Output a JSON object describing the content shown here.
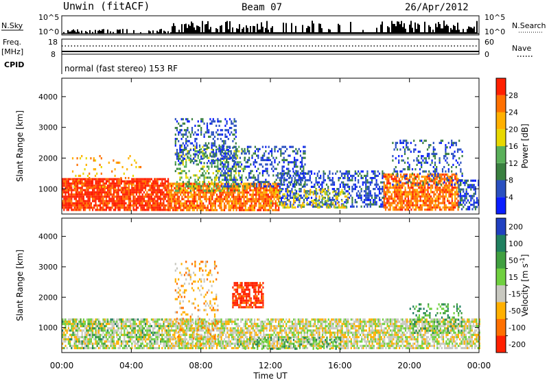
{
  "header": {
    "title": "Unwin (fitACF)",
    "beam": "Beam 07",
    "date": "26/Apr/2012"
  },
  "status_panels": {
    "nsky": {
      "label": "N.Sky",
      "ticks": [
        "10^5",
        "10^0"
      ]
    },
    "nsearch": {
      "label": "N.Search",
      "ticks": [
        "10^5",
        "10^0"
      ]
    },
    "freq": {
      "label_top": "Freq.",
      "label_unit": "[MHz]",
      "ticks": [
        "18",
        "8"
      ]
    },
    "nave": {
      "label": "Nave",
      "ticks": [
        "60",
        "0"
      ]
    },
    "cpid": {
      "label": "CPID",
      "value": "normal (fast stereo) 153 RF"
    }
  },
  "chart_data": [
    {
      "type": "heatmap",
      "title": "",
      "xlabel": "Time UT",
      "ylabel": "Slant Range [km]",
      "xlim": [
        0,
        24
      ],
      "ylim": [
        180,
        4600
      ],
      "x_ticks": [
        "00:00",
        "04:00",
        "08:00",
        "12:00",
        "16:00",
        "20:00",
        "00:00"
      ],
      "x_tick_values": [
        0,
        4,
        8,
        12,
        16,
        20,
        24
      ],
      "y_ticks": [
        "1000",
        "2000",
        "3000",
        "4000"
      ],
      "y_tick_values": [
        1000,
        2000,
        3000,
        4000
      ],
      "colorbar": {
        "label": "Power [dB]",
        "ticks": [
          "4",
          "8",
          "12",
          "16",
          "20",
          "24",
          "28"
        ],
        "tick_values": [
          4,
          8,
          12,
          16,
          20,
          24,
          28
        ],
        "range": [
          0,
          32
        ],
        "colors": [
          "#0a1eff",
          "#2a50c0",
          "#3a8040",
          "#5ab05a",
          "#e8d800",
          "#ffb000",
          "#ff7000",
          "#ff2000"
        ]
      },
      "regions": [
        {
          "t0": 0.0,
          "t1": 6.1,
          "r0": 280,
          "r1": 1350,
          "level": 7,
          "density": 0.85
        },
        {
          "t0": 0.5,
          "t1": 4.5,
          "r0": 1000,
          "r1": 2100,
          "level": 5,
          "density": 0.1
        },
        {
          "t0": 6.1,
          "t1": 12.5,
          "r0": 300,
          "r1": 1200,
          "level": 6,
          "density": 0.8
        },
        {
          "t0": 6.5,
          "t1": 10.5,
          "r0": 900,
          "r1": 2400,
          "level": 3,
          "density": 0.35
        },
        {
          "t0": 6.5,
          "t1": 10.0,
          "r0": 1800,
          "r1": 3300,
          "level": 1,
          "density": 0.3
        },
        {
          "t0": 9.0,
          "t1": 14.0,
          "r0": 1100,
          "r1": 2400,
          "level": 1,
          "density": 0.35
        },
        {
          "t0": 12.5,
          "t1": 18.5,
          "r0": 400,
          "r1": 1600,
          "level": 1,
          "density": 0.45
        },
        {
          "t0": 12.0,
          "t1": 16.5,
          "r0": 400,
          "r1": 1000,
          "level": 4,
          "density": 0.3
        },
        {
          "t0": 18.5,
          "t1": 22.8,
          "r0": 300,
          "r1": 1500,
          "level": 6,
          "density": 0.75
        },
        {
          "t0": 19.0,
          "t1": 23.0,
          "r0": 1100,
          "r1": 2600,
          "level": 1,
          "density": 0.25
        },
        {
          "t0": 22.8,
          "t1": 24.0,
          "r0": 300,
          "r1": 1300,
          "level": 1,
          "density": 0.5
        }
      ]
    },
    {
      "type": "heatmap",
      "title": "",
      "xlabel": "Time UT",
      "ylabel": "Slant Range [km]",
      "xlim": [
        0,
        24
      ],
      "ylim": [
        180,
        4600
      ],
      "x_ticks": [
        "00:00",
        "04:00",
        "08:00",
        "12:00",
        "16:00",
        "20:00",
        "00:00"
      ],
      "x_tick_values": [
        0,
        4,
        8,
        12,
        16,
        20,
        24
      ],
      "y_ticks": [
        "1000",
        "2000",
        "3000",
        "4000"
      ],
      "y_tick_values": [
        1000,
        2000,
        3000,
        4000
      ],
      "colorbar": {
        "label": "Velocity [m s^-1]",
        "ticks": [
          "200",
          "100",
          "50",
          "15",
          "-15",
          "-50",
          "-100",
          "-200"
        ],
        "tick_values": [
          200,
          100,
          50,
          15,
          -15,
          -50,
          -100,
          -200
        ],
        "colors": [
          "#2040c0",
          "#208060",
          "#40a040",
          "#70d040",
          "#c8c8c0",
          "#ffb000",
          "#ff7000",
          "#ff2000"
        ]
      },
      "regions": [
        {
          "t0": 0.0,
          "t1": 6.1,
          "r0": 300,
          "r1": 1300,
          "level": 4,
          "density": 0.7
        },
        {
          "t0": 0.0,
          "t1": 6.1,
          "r0": 300,
          "r1": 1300,
          "level": 2,
          "density": 0.15
        },
        {
          "t0": 6.1,
          "t1": 24.0,
          "r0": 300,
          "r1": 1300,
          "level": 4,
          "density": 0.75
        },
        {
          "t0": 6.5,
          "t1": 9.0,
          "r0": 400,
          "r1": 3200,
          "level": 5,
          "density": 0.2
        },
        {
          "t0": 9.8,
          "t1": 11.6,
          "r0": 1700,
          "r1": 2500,
          "level": 7,
          "density": 0.75
        },
        {
          "t0": 10.0,
          "t1": 16.0,
          "r0": 300,
          "r1": 700,
          "level": 2,
          "density": 0.25
        },
        {
          "t0": 20.0,
          "t1": 23.0,
          "r0": 800,
          "r1": 1800,
          "level": 2,
          "density": 0.25
        }
      ]
    }
  ]
}
